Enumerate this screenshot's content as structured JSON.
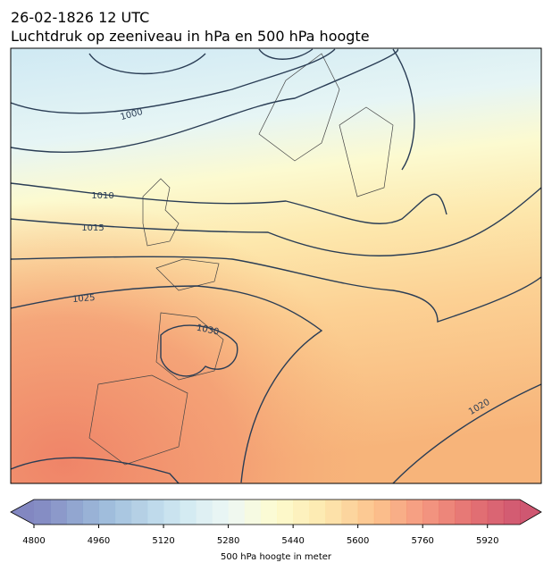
{
  "title_line1": "26-02-1826 12 UTC",
  "title_line2": "Luchtdruk op zeeniveau in hPa en 500 hPa hoogte",
  "isobar_labels": [
    "1000",
    "1010",
    "1015",
    "1025",
    "1030",
    "1020"
  ],
  "colorbar": {
    "label": "500 hPa hoogte in meter",
    "lim": [
      4800,
      6000
    ],
    "ticks": [
      4800,
      4960,
      5120,
      5280,
      5440,
      5600,
      5760,
      5920
    ]
  }
}
